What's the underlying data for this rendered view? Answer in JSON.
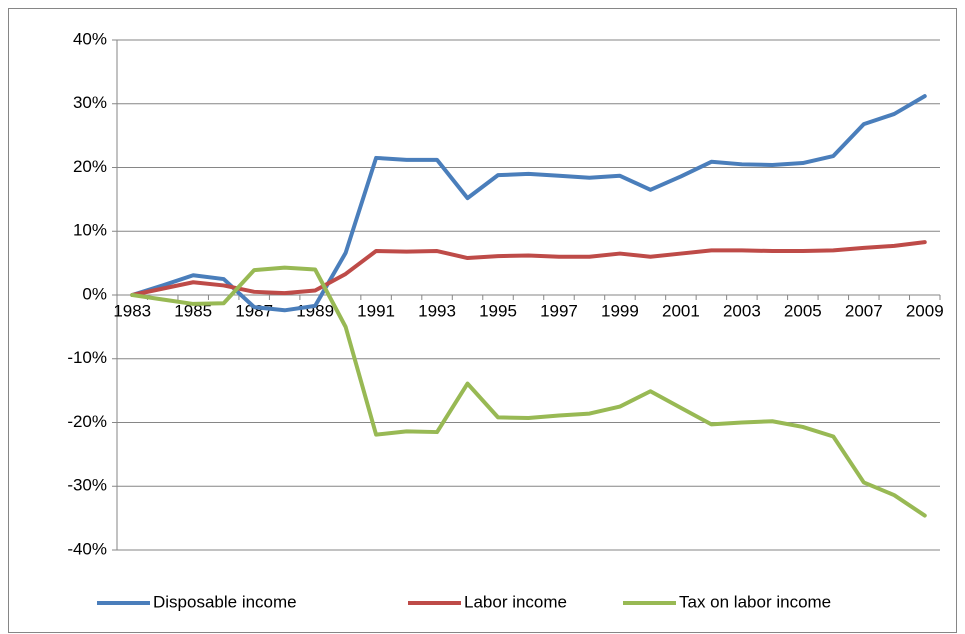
{
  "chart_data": {
    "type": "line",
    "categories": [
      "1983",
      null,
      "1985",
      null,
      "1987",
      null,
      "1989",
      null,
      "1991",
      null,
      "1993",
      null,
      "1995",
      null,
      "1997",
      null,
      "1999",
      null,
      "2001",
      null,
      "2003",
      null,
      "2005",
      null,
      "2007",
      null,
      "2009"
    ],
    "series": [
      {
        "name": "Disposable income",
        "color": "#4a7ebb",
        "values": [
          0,
          1.5,
          3.1,
          2.5,
          -1.9,
          -2.4,
          -1.7,
          6.6,
          21.5,
          21.2,
          21.2,
          15.2,
          18.8,
          19.0,
          18.7,
          18.4,
          18.7,
          16.5,
          18.6,
          20.9,
          20.5,
          20.4,
          20.7,
          21.8,
          26.8,
          28.4,
          31.2
        ]
      },
      {
        "name": "Labor income",
        "color": "#be4b48",
        "values": [
          0,
          1.0,
          2.0,
          1.5,
          0.5,
          0.3,
          0.7,
          3.3,
          6.9,
          6.8,
          6.9,
          5.8,
          6.1,
          6.2,
          6.0,
          6.0,
          6.5,
          6.0,
          6.5,
          7.0,
          7.0,
          6.9,
          6.9,
          7.0,
          7.4,
          7.7,
          8.3
        ]
      },
      {
        "name": "Tax on labor income",
        "color": "#98b954",
        "values": [
          0,
          -0.7,
          -1.4,
          -1.3,
          3.9,
          4.3,
          4.0,
          -5.0,
          -21.9,
          -21.4,
          -21.5,
          -13.9,
          -19.2,
          -19.3,
          -18.9,
          -18.6,
          -17.5,
          -15.1,
          -17.7,
          -20.3,
          -20.0,
          -19.8,
          -20.7,
          -22.2,
          -29.4,
          -31.4,
          -34.6
        ]
      }
    ],
    "ylim": [
      -40,
      40
    ],
    "yticks": [
      {
        "value": -40,
        "label": "-40%"
      },
      {
        "value": -30,
        "label": "-30%"
      },
      {
        "value": -20,
        "label": "-20%"
      },
      {
        "value": -10,
        "label": "-10%"
      },
      {
        "value": 0,
        "label": "0%"
      },
      {
        "value": 10,
        "label": "10%"
      },
      {
        "value": 20,
        "label": "20%"
      },
      {
        "value": 30,
        "label": "30%"
      },
      {
        "value": 40,
        "label": "40%"
      }
    ],
    "grid": true,
    "legend": "bottom"
  }
}
